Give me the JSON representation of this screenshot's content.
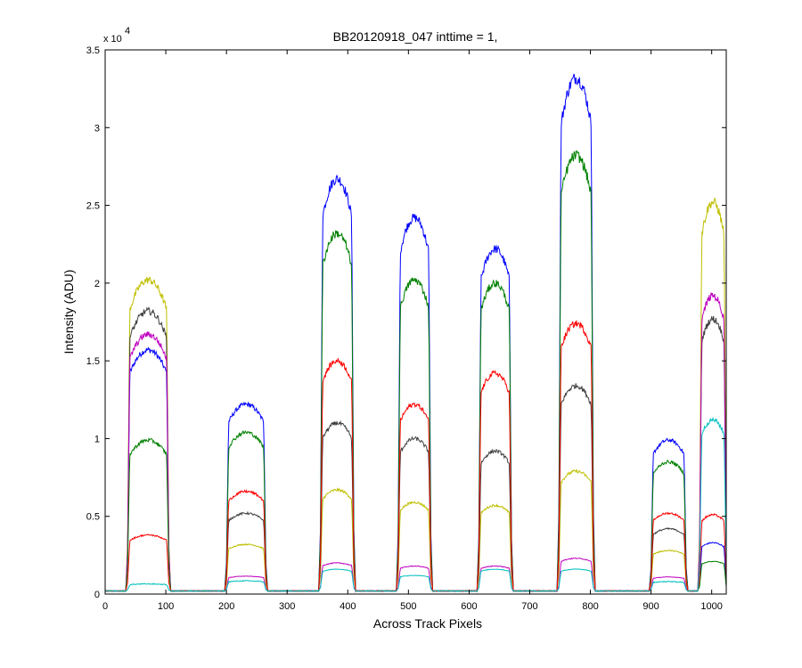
{
  "chart_data": {
    "type": "line",
    "title": "BB20120918_047 inttime = 1,",
    "xlabel": "Across Track Pixels",
    "ylabel": "Intensity (ADU)",
    "xlim": [
      0,
      1024
    ],
    "ylim": [
      0,
      35000
    ],
    "x_ticks": [
      0,
      100,
      200,
      300,
      400,
      500,
      600,
      700,
      800,
      900,
      1000
    ],
    "y_tick_labels": [
      "0",
      "0.5",
      "1",
      "1.5",
      "2",
      "2.5",
      "3",
      "3.5"
    ],
    "y_ticks": [
      0,
      5000,
      10000,
      15000,
      20000,
      25000,
      30000,
      35000
    ],
    "y_exponent_label": {
      "base": "x 10",
      "exp": "4"
    },
    "grid": false,
    "legend": "none",
    "segments": [
      {
        "start": 37,
        "end": 105
      },
      {
        "start": 200,
        "end": 265
      },
      {
        "start": 355,
        "end": 410
      },
      {
        "start": 483,
        "end": 537
      },
      {
        "start": 616,
        "end": 670
      },
      {
        "start": 748,
        "end": 805
      },
      {
        "start": 900,
        "end": 958
      },
      {
        "start": 980,
        "end": 1024
      }
    ],
    "series": [
      {
        "color": "#0000ff",
        "peaks": [
          15500,
          12000,
          26500,
          24000,
          22000,
          33000,
          9700,
          3100
        ]
      },
      {
        "color": "#bfbf00",
        "peaks": [
          20000,
          3000,
          6500,
          5700,
          5500,
          7700,
          2600,
          25000
        ]
      },
      {
        "color": "#404040",
        "peaks": [
          18000,
          5000,
          10800,
          9800,
          9000,
          13200,
          4000,
          17500
        ]
      },
      {
        "color": "#bf00bf",
        "peaks": [
          16500,
          950,
          1800,
          1600,
          1600,
          2100,
          900,
          19000
        ]
      },
      {
        "color": "#008000",
        "peaks": [
          9700,
          10200,
          23000,
          20000,
          19800,
          28000,
          8300,
          1900
        ]
      },
      {
        "color": "#ff0000",
        "peaks": [
          3600,
          6400,
          14800,
          12000,
          14000,
          17200,
          5000,
          4900
        ]
      },
      {
        "color": "#00bfbf",
        "peaks": [
          450,
          650,
          1400,
          1000,
          1400,
          1400,
          600,
          11000
        ]
      }
    ],
    "baseline": 200
  }
}
